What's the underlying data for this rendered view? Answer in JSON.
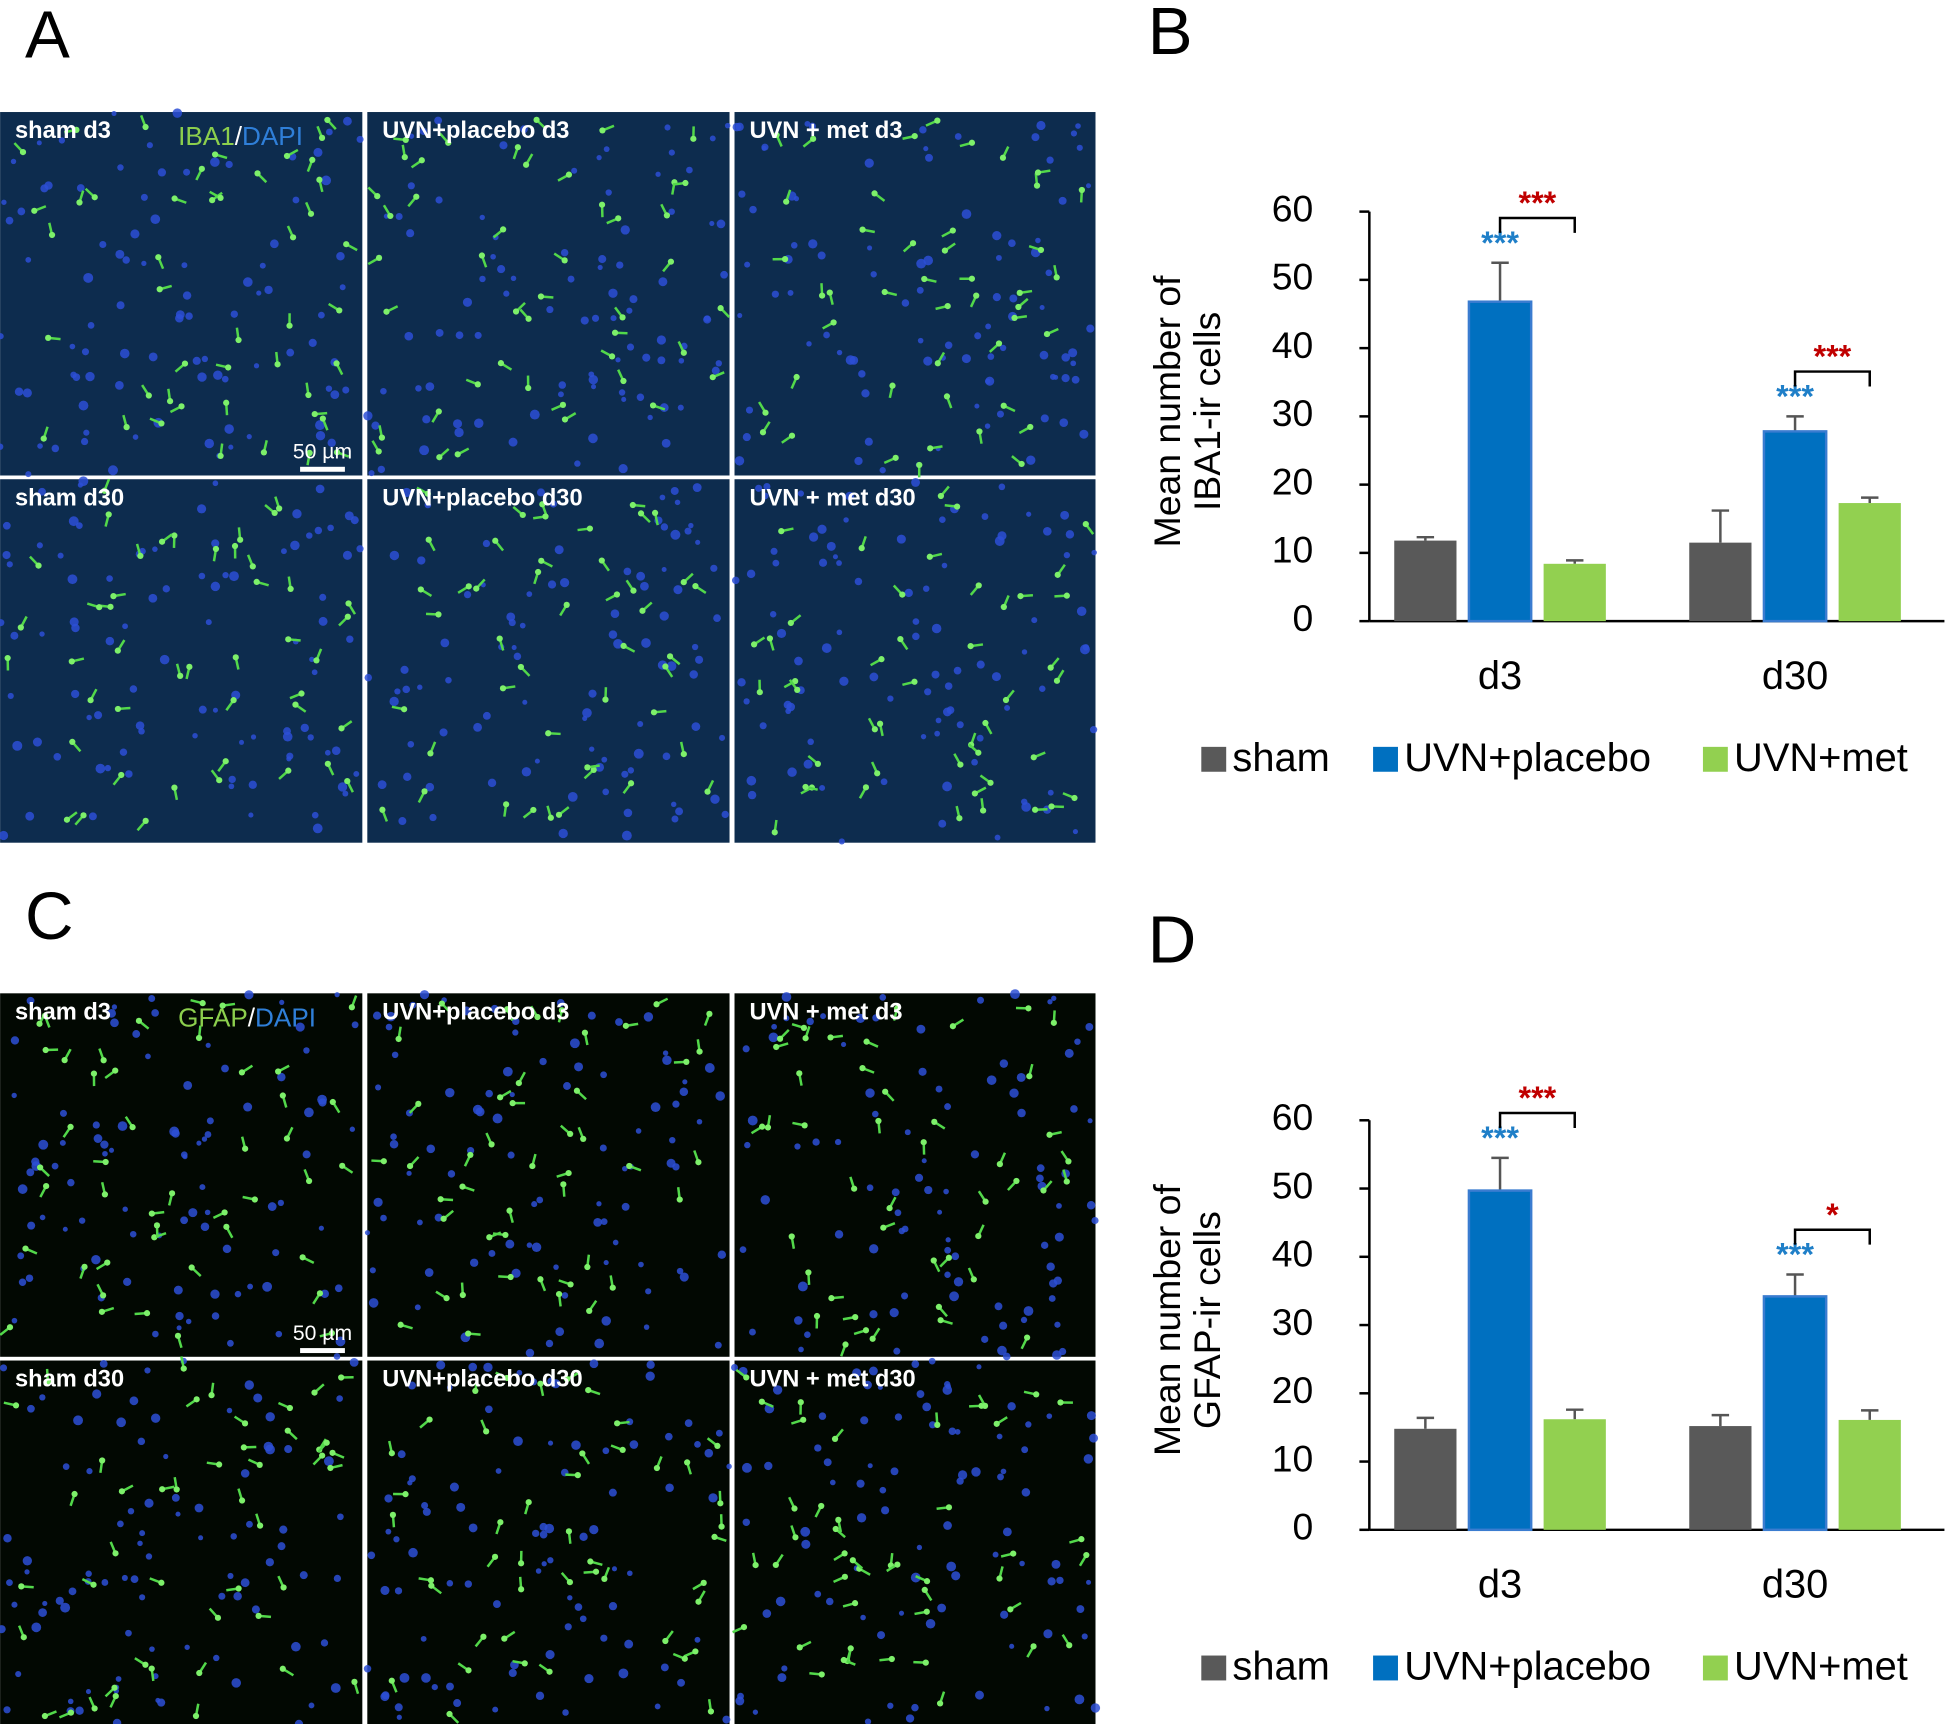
{
  "image_panels": [
    {
      "letter": "A",
      "stain": [
        {
          "text": "IBA1",
          "color": "#8ccf4d"
        },
        {
          "text": "/",
          "color": "#ffffff"
        },
        {
          "text": "DAPI",
          "color": "#2f7fd8"
        }
      ],
      "scale_bar": "50 µm",
      "background": "#0d2c4e",
      "images": [
        "sham d3",
        "UVN+placebo d3",
        "UVN + met d3",
        "sham d30",
        "UVN+placebo d30",
        "UVN + met d30"
      ]
    },
    {
      "letter": "C",
      "stain": [
        {
          "text": "GFAP",
          "color": "#8ccf4d"
        },
        {
          "text": "/",
          "color": "#ffffff"
        },
        {
          "text": "DAPI",
          "color": "#2f7fd8"
        }
      ],
      "scale_bar": "50 µm",
      "background": "#020802",
      "images": [
        "sham d3",
        "UVN+placebo d3",
        "UVN + met d3",
        "sham d30",
        "UVN+placebo d30",
        "UVN + met d30"
      ]
    }
  ],
  "chart_data": [
    {
      "type": "bar",
      "panel": "B",
      "ylabel": [
        "Mean number of",
        "IBA1-ir cells"
      ],
      "categories": [
        "d3",
        "d30"
      ],
      "series": [
        {
          "name": "sham",
          "color": "#595959",
          "values": [
            11.8,
            11.5
          ],
          "errors": [
            0.5,
            4.7
          ]
        },
        {
          "name": "UVN+placebo",
          "color": "#0070c0",
          "values": [
            46.8,
            27.8
          ],
          "errors": [
            5.7,
            2.2
          ]
        },
        {
          "name": "UVN+met",
          "color": "#92d050",
          "values": [
            8.4,
            17.3
          ],
          "errors": [
            0.5,
            0.8
          ]
        }
      ],
      "ylim": [
        0,
        60
      ],
      "yticks": [
        0,
        10,
        20,
        30,
        40,
        50,
        60
      ],
      "significance": {
        "placebo_vs_sham": [
          "***",
          "***"
        ],
        "placebo_vs_sham_color": "#1f7fc8",
        "met_vs_placebo": [
          "***",
          "***"
        ],
        "met_vs_placebo_color": "#c00000"
      }
    },
    {
      "type": "bar",
      "panel": "D",
      "ylabel": [
        "Mean number of",
        "GFAP-ir cells"
      ],
      "categories": [
        "d3",
        "d30"
      ],
      "series": [
        {
          "name": "sham",
          "color": "#595959",
          "values": [
            14.8,
            15.2
          ],
          "errors": [
            1.6,
            1.6
          ]
        },
        {
          "name": "UVN+placebo",
          "color": "#0070c0",
          "values": [
            49.7,
            34.2
          ],
          "errors": [
            4.8,
            3.2
          ]
        },
        {
          "name": "UVN+met",
          "color": "#92d050",
          "values": [
            16.2,
            16.1
          ],
          "errors": [
            1.4,
            1.4
          ]
        }
      ],
      "ylim": [
        0,
        60
      ],
      "yticks": [
        0,
        10,
        20,
        30,
        40,
        50,
        60
      ],
      "significance": {
        "placebo_vs_sham": [
          "***",
          "***"
        ],
        "placebo_vs_sham_color": "#1f7fc8",
        "met_vs_placebo": [
          "***",
          "*"
        ],
        "met_vs_placebo_color": "#c00000"
      }
    }
  ]
}
